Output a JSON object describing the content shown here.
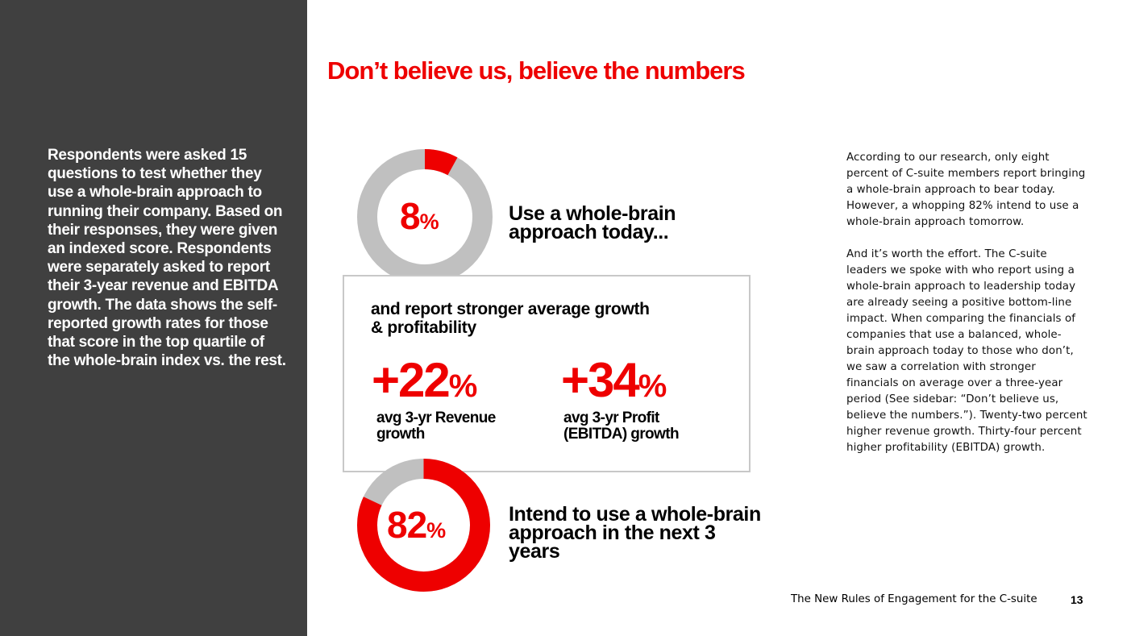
{
  "sidebar": {
    "text": "Respondents were asked 15 questions to test whether they use a whole-brain approach to running their company. Based on their responses, they were given an indexed score. Respondents were separately asked to report their 3-year revenue and EBITDA growth. The data shows the self-reported growth rates for those that score in the top quartile of the whole-brain index vs. the rest."
  },
  "title": "Don’t believe us, believe the numbers",
  "colors": {
    "accent": "#ee0000",
    "track": "#c0c0c0",
    "sidebar": "#404040",
    "box_border": "#c8c8c8"
  },
  "stats": {
    "today": {
      "value": 8,
      "number": "8",
      "unit": "%",
      "label": "Use a whole-brain approach today..."
    },
    "future": {
      "value": 82,
      "number": "82",
      "unit": "%",
      "label": "Intend to use a whole-brain approach in the next 3 years"
    }
  },
  "growth_box": {
    "heading": "and report stronger average growth & profitability",
    "metrics": [
      {
        "number": "+22",
        "unit": "%",
        "label": "avg 3-yr Revenue growth"
      },
      {
        "number": "+34",
        "unit": "%",
        "label": "avg 3-yr Profit (EBITDA) growth"
      }
    ]
  },
  "body_copy": {
    "p1": "According to our research, only eight percent of C-suite members report bringing a whole-brain approach to bear today.  However, a whopping 82% intend to use a whole-brain approach tomorrow.",
    "p2": "And it’s worth the effort. The C-suite leaders we spoke with who report using a whole-brain approach to leadership today are already seeing a positive bottom-line impact. When comparing the financials of companies that use a balanced, whole-brain approach today to those who don’t, we saw a correlation with stronger financials on average over a three-year period (See sidebar: “Don’t believe us, believe the numbers.”). Twenty-two percent higher revenue growth. Thirty-four percent higher profitability (EBITDA) growth."
  },
  "footer": {
    "title": "The New Rules of Engagement for the C-suite",
    "page": "13"
  }
}
